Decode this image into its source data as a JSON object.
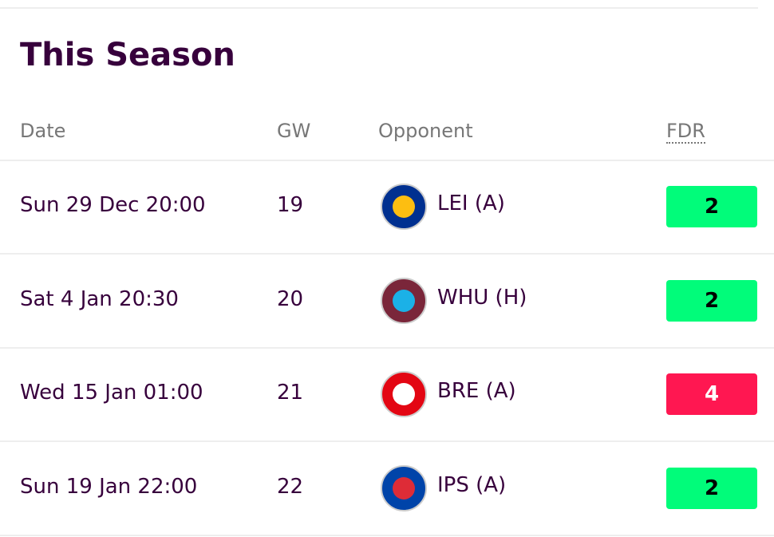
{
  "title": "This Season",
  "table": {
    "headers": [
      "Date",
      "GW",
      "Opponent",
      "FDR"
    ],
    "rows": [
      [
        "Sun 29 Dec 20:00",
        "19",
        "LEI (A)",
        "2"
      ],
      [
        "Sat 4 Jan 20:30",
        "20",
        "WHU (H)",
        "2"
      ],
      [
        "Wed 15 Jan 01:00",
        "21",
        "BRE (A)",
        "4"
      ],
      [
        "Sun 19 Jan 22:00",
        "22",
        "IPS (A)",
        "2"
      ]
    ]
  }
}
